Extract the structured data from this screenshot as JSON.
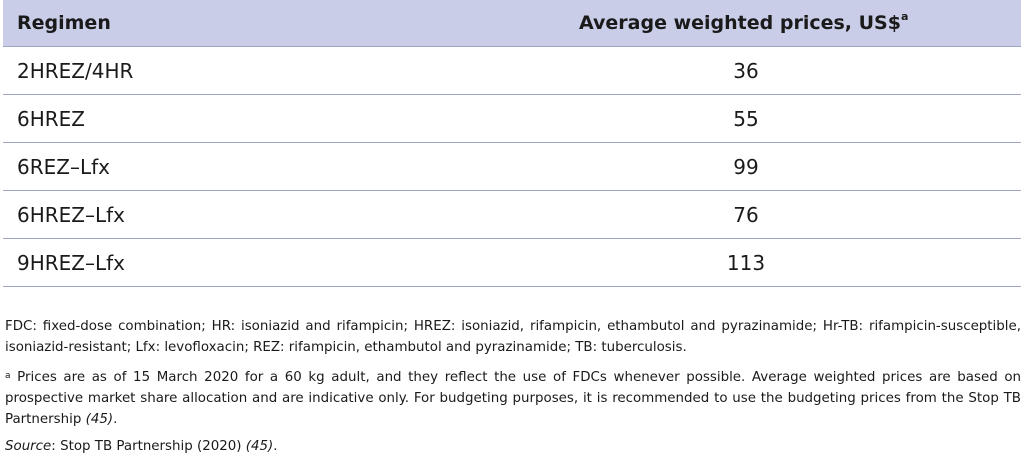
{
  "table": {
    "headers": {
      "regimen": "Regimen",
      "price": "Average weighted prices, US$",
      "price_note_mark": "a"
    },
    "rows": [
      {
        "regimen": "2HREZ/4HR",
        "price": "36"
      },
      {
        "regimen": "6HREZ",
        "price": "55"
      },
      {
        "regimen": "6REZ–Lfx",
        "price": "99"
      },
      {
        "regimen": "6HREZ–Lfx",
        "price": "76"
      },
      {
        "regimen": "9HREZ–Lfx",
        "price": "113"
      }
    ]
  },
  "notes": {
    "abbreviations": "FDC: fixed-dose combination; HR: isoniazid and rifampicin; HREZ: isoniazid, rifampicin, ethambutol and pyrazinamide; Hr-TB: rifampicin-susceptible, isoniazid-resistant; Lfx: levofloxacin; REZ: rifampicin, ethambutol and pyrazinamide; TB: tuberculosis.",
    "footnote_mark": "a",
    "footnote_text": "Prices are as of 15 March 2020 for a 60 kg adult, and they reflect the use of FDCs whenever possible. Average weighted prices are based on prospective market share allocation and are indicative only. For budgeting purposes, it is recommended to use the budgeting prices from the Stop TB Partnership ",
    "footnote_ref": "(45)",
    "footnote_end": ".",
    "source_label": "Source",
    "source_text": ": Stop TB Partnership (2020) ",
    "source_ref": "(45)",
    "source_end": "."
  }
}
